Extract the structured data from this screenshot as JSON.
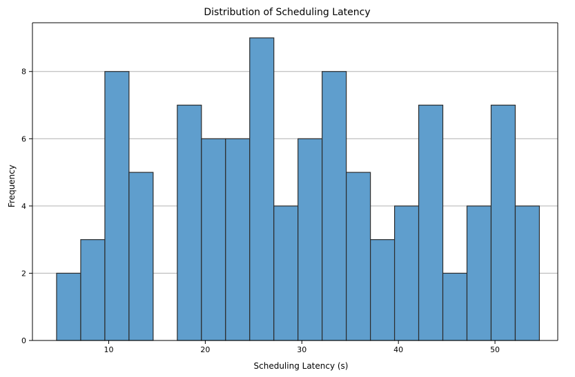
{
  "chart_data": {
    "type": "bar",
    "title": "Distribution of Scheduling Latency",
    "xlabel": "Scheduling Latency (s)",
    "ylabel": "Frequency",
    "xlim": [
      2.1,
      56.5
    ],
    "ylim": [
      0,
      9.45
    ],
    "x_ticks": [
      10,
      20,
      30,
      40,
      50
    ],
    "y_ticks": [
      0,
      2,
      4,
      6,
      8
    ],
    "grid": {
      "x": false,
      "y": true
    },
    "bins": [
      {
        "x0": 4.6,
        "x1": 7.1,
        "count": 2
      },
      {
        "x0": 7.1,
        "x1": 9.6,
        "count": 3
      },
      {
        "x0": 9.6,
        "x1": 12.1,
        "count": 8
      },
      {
        "x0": 12.1,
        "x1": 14.6,
        "count": 5
      },
      {
        "x0": 14.6,
        "x1": 17.1,
        "count": 0
      },
      {
        "x0": 17.1,
        "x1": 19.6,
        "count": 7
      },
      {
        "x0": 19.6,
        "x1": 22.1,
        "count": 6
      },
      {
        "x0": 22.1,
        "x1": 24.6,
        "count": 6
      },
      {
        "x0": 24.6,
        "x1": 27.1,
        "count": 9
      },
      {
        "x0": 27.1,
        "x1": 29.6,
        "count": 4
      },
      {
        "x0": 29.6,
        "x1": 32.1,
        "count": 6
      },
      {
        "x0": 32.1,
        "x1": 34.6,
        "count": 8
      },
      {
        "x0": 34.6,
        "x1": 37.1,
        "count": 5
      },
      {
        "x0": 37.1,
        "x1": 39.6,
        "count": 3
      },
      {
        "x0": 39.6,
        "x1": 42.1,
        "count": 4
      },
      {
        "x0": 42.1,
        "x1": 44.6,
        "count": 7
      },
      {
        "x0": 44.6,
        "x1": 47.1,
        "count": 2
      },
      {
        "x0": 47.1,
        "x1": 49.6,
        "count": 4
      },
      {
        "x0": 49.6,
        "x1": 52.1,
        "count": 7
      },
      {
        "x0": 52.1,
        "x1": 54.6,
        "count": 4
      }
    ],
    "colors": {
      "bar_fill": "#5f9ecd",
      "bar_edge": "#2b2b2b",
      "grid": "#b0b0b0",
      "axis": "#000000"
    }
  }
}
